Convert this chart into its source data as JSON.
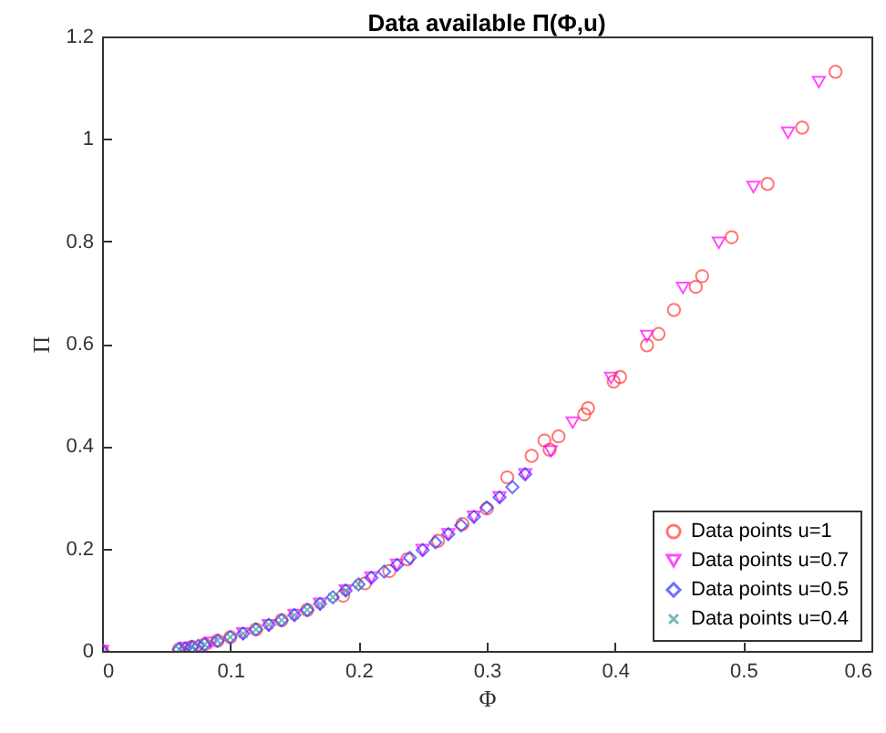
{
  "chart_data": {
    "type": "scatter",
    "title": "Data available Π(Φ,u)",
    "xlabel": "Φ",
    "ylabel": "Π",
    "xlim": [
      0,
      0.6
    ],
    "xticks": [
      0,
      0.1,
      0.2,
      0.3,
      0.4,
      0.5,
      0.6
    ],
    "ylim": [
      0,
      1.2
    ],
    "yticks": [
      0,
      0.2,
      0.4,
      0.6,
      0.8,
      1,
      1.2
    ],
    "grid": false,
    "legend": "bottom right",
    "series": [
      {
        "name": "Data points u=1",
        "color": "#ff3b3b",
        "marker": "circle",
        "x": [
          0,
          0.06,
          0.07,
          0.08,
          0.09,
          0.1,
          0.12,
          0.14,
          0.16,
          0.188,
          0.205,
          0.224,
          0.238,
          0.262,
          0.281,
          0.3,
          0.316,
          0.335,
          0.345,
          0.349,
          0.356,
          0.376,
          0.379,
          0.399,
          0.404,
          0.425,
          0.434,
          0.446,
          0.463,
          0.468,
          0.491,
          0.519,
          0.546,
          0.572
        ],
        "values": [
          0,
          0.003,
          0.008,
          0.013,
          0.02,
          0.027,
          0.042,
          0.06,
          0.08,
          0.108,
          0.132,
          0.156,
          0.179,
          0.215,
          0.248,
          0.278,
          0.339,
          0.381,
          0.411,
          0.393,
          0.419,
          0.462,
          0.474,
          0.526,
          0.535,
          0.597,
          0.619,
          0.666,
          0.711,
          0.732,
          0.808,
          0.912,
          1.022,
          1.131
        ]
      },
      {
        "name": "Data points u=0.7",
        "color": "#ff00ff",
        "marker": "triangle-down",
        "x": [
          0,
          0.065,
          0.085,
          0.11,
          0.13,
          0.15,
          0.17,
          0.19,
          0.21,
          0.23,
          0.25,
          0.27,
          0.29,
          0.31,
          0.33,
          0.35,
          0.367,
          0.397,
          0.425,
          0.453,
          0.481,
          0.508,
          0.535,
          0.559
        ],
        "values": [
          0,
          0.006,
          0.016,
          0.034,
          0.05,
          0.07,
          0.092,
          0.118,
          0.143,
          0.168,
          0.197,
          0.228,
          0.262,
          0.3,
          0.345,
          0.39,
          0.446,
          0.533,
          0.615,
          0.709,
          0.797,
          0.906,
          1.012,
          1.111
        ]
      },
      {
        "name": "Data points u=0.5",
        "color": "#3333ff",
        "marker": "diamond",
        "x": [
          0,
          0.06,
          0.065,
          0.07,
          0.075,
          0.08,
          0.09,
          0.1,
          0.11,
          0.12,
          0.13,
          0.14,
          0.15,
          0.16,
          0.17,
          0.18,
          0.19,
          0.2,
          0.21,
          0.22,
          0.23,
          0.24,
          0.25,
          0.26,
          0.27,
          0.28,
          0.29,
          0.3,
          0.31,
          0.32,
          0.33
        ],
        "values": [
          0,
          0.003,
          0.005,
          0.008,
          0.01,
          0.013,
          0.02,
          0.027,
          0.034,
          0.042,
          0.051,
          0.06,
          0.07,
          0.08,
          0.092,
          0.105,
          0.118,
          0.13,
          0.143,
          0.155,
          0.168,
          0.182,
          0.197,
          0.212,
          0.228,
          0.245,
          0.262,
          0.28,
          0.3,
          0.32,
          0.345
        ]
      },
      {
        "name": "Data points u=0.4",
        "color": "#3a9e9a",
        "marker": "x",
        "x": [
          0.06,
          0.07,
          0.08,
          0.09,
          0.1,
          0.11,
          0.12,
          0.13,
          0.14,
          0.15,
          0.16,
          0.17,
          0.18,
          0.19,
          0.2
        ],
        "values": [
          0.003,
          0.008,
          0.013,
          0.02,
          0.027,
          0.034,
          0.042,
          0.051,
          0.06,
          0.07,
          0.08,
          0.092,
          0.105,
          0.118,
          0.13
        ]
      }
    ]
  }
}
